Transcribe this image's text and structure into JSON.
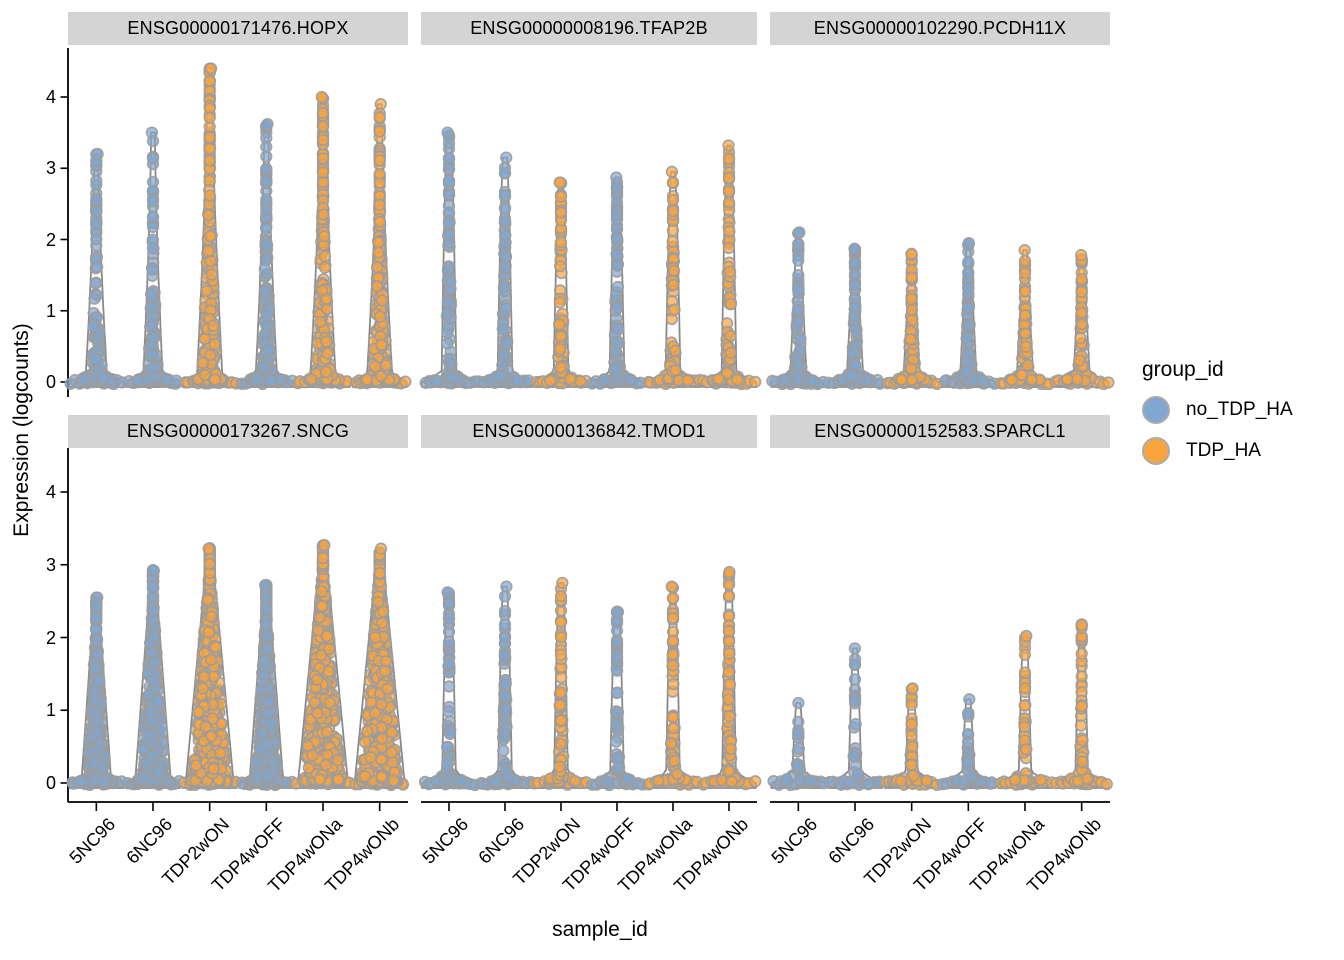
{
  "figure": {
    "colors": {
      "blue": "#7FA7D1",
      "orange": "#FAA43F",
      "point_stroke": "#9C9C9C",
      "violin_line": "#8A8A8A",
      "violin_fill": "#FBFBFB",
      "strip_bg": "#D4D4D4",
      "axis": "#000000"
    }
  },
  "chart_data": {
    "type": "violin",
    "title": "",
    "xlabel": "sample_id",
    "ylabel": "Expression (logcounts)",
    "ylim": [
      0,
      4.6
    ],
    "yticks": [
      0,
      1,
      2,
      3,
      4
    ],
    "categories": [
      "5NC96",
      "6NC96",
      "TDP2wON",
      "TDP4wOFF",
      "TDP4wONa",
      "TDP4wONb"
    ],
    "sample_groups": {
      "5NC96": "no_TDP_HA",
      "6NC96": "no_TDP_HA",
      "TDP2wON": "TDP_HA",
      "TDP4wOFF": "no_TDP_HA",
      "TDP4wONa": "TDP_HA",
      "TDP4wONb": "TDP_HA"
    },
    "legend": {
      "title": "group_id",
      "position": "right",
      "entries": [
        {
          "label": "no_TDP_HA",
          "color": "#7FA7D1"
        },
        {
          "label": "TDP_HA",
          "color": "#FAA43F"
        }
      ]
    },
    "facets": [
      {
        "title": "ENSG00000171476.HOPX",
        "row": 0,
        "col": 0,
        "violins": [
          {
            "sample": "5NC96",
            "group": "no_TDP_HA",
            "max": 3.2,
            "n_zero": 14,
            "n_pos": 110,
            "stem_w": 9,
            "taper": 1.5,
            "conc": 2.4
          },
          {
            "sample": "6NC96",
            "group": "no_TDP_HA",
            "max": 3.5,
            "n_zero": 14,
            "n_pos": 100,
            "stem_w": 8,
            "taper": 1.5,
            "conc": 2.7
          },
          {
            "sample": "TDP2wON",
            "group": "TDP_HA",
            "max": 4.4,
            "n_zero": 14,
            "n_pos": 220,
            "stem_w": 11,
            "taper": 1.5,
            "conc": 2.1
          },
          {
            "sample": "TDP4wOFF",
            "group": "no_TDP_HA",
            "max": 3.62,
            "n_zero": 14,
            "n_pos": 150,
            "stem_w": 9,
            "taper": 1.5,
            "conc": 2.4
          },
          {
            "sample": "TDP4wONa",
            "group": "TDP_HA",
            "max": 4.0,
            "n_zero": 14,
            "n_pos": 210,
            "stem_w": 11,
            "taper": 1.5,
            "conc": 1.9
          },
          {
            "sample": "TDP4wONb",
            "group": "TDP_HA",
            "max": 3.9,
            "n_zero": 14,
            "n_pos": 200,
            "stem_w": 11,
            "taper": 1.5,
            "conc": 1.9
          }
        ]
      },
      {
        "title": "ENSG00000008196.TFAP2B",
        "row": 0,
        "col": 1,
        "violins": [
          {
            "sample": "5NC96",
            "group": "no_TDP_HA",
            "max": 3.5,
            "n_zero": 14,
            "n_pos": 80,
            "stem_w": 5.5,
            "taper": 0.7,
            "conc": 1.5
          },
          {
            "sample": "6NC96",
            "group": "no_TDP_HA",
            "max": 3.15,
            "n_zero": 14,
            "n_pos": 75,
            "stem_w": 5.5,
            "taper": 0.7,
            "conc": 1.5
          },
          {
            "sample": "TDP2wON",
            "group": "TDP_HA",
            "max": 2.8,
            "n_zero": 14,
            "n_pos": 70,
            "stem_w": 5.5,
            "taper": 0.7,
            "conc": 1.5
          },
          {
            "sample": "TDP4wOFF",
            "group": "no_TDP_HA",
            "max": 2.87,
            "n_zero": 14,
            "n_pos": 80,
            "stem_w": 5.5,
            "taper": 0.7,
            "conc": 1.4
          },
          {
            "sample": "TDP4wONa",
            "group": "TDP_HA",
            "max": 2.95,
            "n_zero": 14,
            "n_pos": 70,
            "stem_w": 5.5,
            "taper": 0.7,
            "conc": 1.5
          },
          {
            "sample": "TDP4wONb",
            "group": "TDP_HA",
            "max": 3.32,
            "n_zero": 14,
            "n_pos": 75,
            "stem_w": 5.5,
            "taper": 0.7,
            "conc": 1.5
          }
        ]
      },
      {
        "title": "ENSG00000102290.PCDH11X",
        "row": 0,
        "col": 2,
        "violins": [
          {
            "sample": "5NC96",
            "group": "no_TDP_HA",
            "max": 2.1,
            "n_zero": 14,
            "n_pos": 85,
            "stem_w": 6.5,
            "taper": 1.1,
            "conc": 1.9
          },
          {
            "sample": "6NC96",
            "group": "no_TDP_HA",
            "max": 1.87,
            "n_zero": 14,
            "n_pos": 80,
            "stem_w": 6.5,
            "taper": 1.1,
            "conc": 1.9
          },
          {
            "sample": "TDP2wON",
            "group": "TDP_HA",
            "max": 1.8,
            "n_zero": 14,
            "n_pos": 75,
            "stem_w": 6.5,
            "taper": 1.1,
            "conc": 1.9
          },
          {
            "sample": "TDP4wOFF",
            "group": "no_TDP_HA",
            "max": 1.95,
            "n_zero": 14,
            "n_pos": 80,
            "stem_w": 6.5,
            "taper": 1.1,
            "conc": 1.9
          },
          {
            "sample": "TDP4wONa",
            "group": "TDP_HA",
            "max": 1.85,
            "n_zero": 14,
            "n_pos": 70,
            "stem_w": 6.5,
            "taper": 1.1,
            "conc": 1.9
          },
          {
            "sample": "TDP4wONb",
            "group": "TDP_HA",
            "max": 1.78,
            "n_zero": 14,
            "n_pos": 70,
            "stem_w": 6.5,
            "taper": 1.1,
            "conc": 1.9
          }
        ]
      },
      {
        "title": "ENSG00000173267.SNCG",
        "row": 1,
        "col": 0,
        "violins": [
          {
            "sample": "5NC96",
            "group": "no_TDP_HA",
            "max": 2.55,
            "n_zero": 14,
            "n_pos": 260,
            "stem_w": 13,
            "taper": 1.0,
            "conc": 1.7
          },
          {
            "sample": "6NC96",
            "group": "no_TDP_HA",
            "max": 2.92,
            "n_zero": 14,
            "n_pos": 320,
            "stem_w": 16,
            "taper": 1.0,
            "conc": 1.6
          },
          {
            "sample": "TDP2wON",
            "group": "TDP_HA",
            "max": 3.22,
            "n_zero": 14,
            "n_pos": 550,
            "stem_w": 22,
            "taper": 1.0,
            "conc": 1.45
          },
          {
            "sample": "TDP4wOFF",
            "group": "no_TDP_HA",
            "max": 2.72,
            "n_zero": 14,
            "n_pos": 380,
            "stem_w": 15,
            "taper": 1.0,
            "conc": 1.6
          },
          {
            "sample": "TDP4wONa",
            "group": "TDP_HA",
            "max": 3.27,
            "n_zero": 14,
            "n_pos": 570,
            "stem_w": 23,
            "taper": 1.0,
            "conc": 1.45
          },
          {
            "sample": "TDP4wONb",
            "group": "TDP_HA",
            "max": 3.22,
            "n_zero": 14,
            "n_pos": 550,
            "stem_w": 23,
            "taper": 1.0,
            "conc": 1.45
          }
        ]
      },
      {
        "title": "ENSG00000136842.TMOD1",
        "row": 1,
        "col": 1,
        "violins": [
          {
            "sample": "5NC96",
            "group": "no_TDP_HA",
            "max": 2.62,
            "n_zero": 14,
            "n_pos": 55,
            "stem_w": 5,
            "taper": 0.7,
            "conc": 1.5
          },
          {
            "sample": "6NC96",
            "group": "no_TDP_HA",
            "max": 2.7,
            "n_zero": 14,
            "n_pos": 60,
            "stem_w": 5,
            "taper": 0.7,
            "conc": 1.5
          },
          {
            "sample": "TDP2wON",
            "group": "TDP_HA",
            "max": 2.75,
            "n_zero": 14,
            "n_pos": 55,
            "stem_w": 5,
            "taper": 0.7,
            "conc": 1.5
          },
          {
            "sample": "TDP4wOFF",
            "group": "no_TDP_HA",
            "max": 2.35,
            "n_zero": 14,
            "n_pos": 50,
            "stem_w": 5,
            "taper": 0.7,
            "conc": 1.5
          },
          {
            "sample": "TDP4wONa",
            "group": "TDP_HA",
            "max": 2.7,
            "n_zero": 14,
            "n_pos": 60,
            "stem_w": 5,
            "taper": 0.7,
            "conc": 1.5
          },
          {
            "sample": "TDP4wONb",
            "group": "TDP_HA",
            "max": 2.9,
            "n_zero": 14,
            "n_pos": 65,
            "stem_w": 5,
            "taper": 0.7,
            "conc": 1.5
          }
        ]
      },
      {
        "title": "ENSG00000152583.SPARCL1",
        "row": 1,
        "col": 2,
        "violins": [
          {
            "sample": "5NC96",
            "group": "no_TDP_HA",
            "max": 1.1,
            "n_zero": 14,
            "n_pos": 20,
            "stem_w": 4.5,
            "taper": 0.8,
            "conc": 1.7
          },
          {
            "sample": "6NC96",
            "group": "no_TDP_HA",
            "max": 1.85,
            "n_zero": 14,
            "n_pos": 24,
            "stem_w": 4.5,
            "taper": 0.8,
            "conc": 1.7
          },
          {
            "sample": "TDP2wON",
            "group": "TDP_HA",
            "max": 1.3,
            "n_zero": 14,
            "n_pos": 34,
            "stem_w": 4.5,
            "taper": 0.8,
            "conc": 1.7
          },
          {
            "sample": "TDP4wOFF",
            "group": "no_TDP_HA",
            "max": 1.15,
            "n_zero": 14,
            "n_pos": 22,
            "stem_w": 4.5,
            "taper": 0.8,
            "conc": 1.7
          },
          {
            "sample": "TDP4wONa",
            "group": "TDP_HA",
            "max": 2.02,
            "n_zero": 14,
            "n_pos": 38,
            "stem_w": 4.5,
            "taper": 0.8,
            "conc": 1.7
          },
          {
            "sample": "TDP4wONb",
            "group": "TDP_HA",
            "max": 2.17,
            "n_zero": 14,
            "n_pos": 42,
            "stem_w": 4.5,
            "taper": 0.8,
            "conc": 1.7
          }
        ]
      }
    ]
  }
}
